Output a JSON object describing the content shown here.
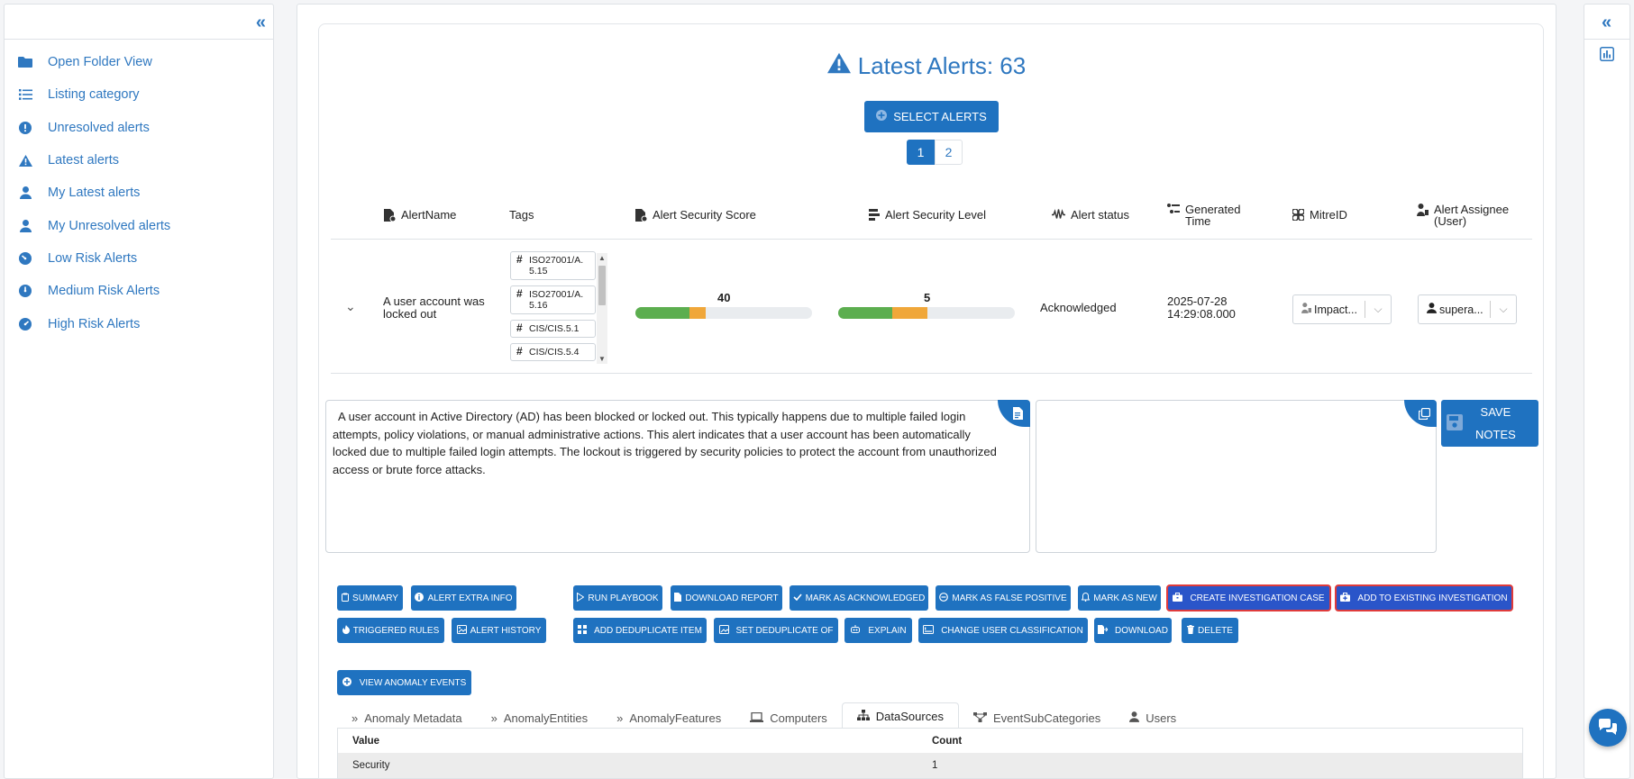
{
  "sidebar": {
    "items": [
      {
        "label": "Open Folder View",
        "icon": "folder-icon"
      },
      {
        "label": "Listing category",
        "icon": "list-icon"
      },
      {
        "label": "Unresolved alerts",
        "icon": "exclamation-circle-icon"
      },
      {
        "label": "Latest alerts",
        "icon": "warning-triangle-icon"
      },
      {
        "label": "My Latest alerts",
        "icon": "user-icon"
      },
      {
        "label": "My Unresolved alerts",
        "icon": "user-icon"
      },
      {
        "label": "Low Risk Alerts",
        "icon": "gauge-low-icon"
      },
      {
        "label": "Medium Risk Alerts",
        "icon": "gauge-medium-icon"
      },
      {
        "label": "High Risk Alerts",
        "icon": "gauge-high-icon"
      }
    ]
  },
  "main": {
    "title": "Latest Alerts: 63",
    "select_alerts_label": "SELECT ALERTS",
    "pages": [
      "1",
      "2"
    ],
    "columns": {
      "alert_name": "AlertName",
      "tags": "Tags",
      "security_score": "Alert Security Score",
      "security_level": "Alert Security Level",
      "status": "Alert status",
      "generated_time": "Generated Time",
      "mitre_id": "MitreID",
      "assignee": "Alert Assignee (User)"
    },
    "row": {
      "alert_name": "A user account was locked out",
      "tags": [
        "ISO27001/A. 5.15",
        "ISO27001/A. 5.16",
        "CIS/CIS.5.1",
        "CIS/CIS.5.4"
      ],
      "security_score": "40",
      "security_score_value": 40,
      "security_level": "5",
      "security_level_value": 5,
      "status": "Acknowledged",
      "generated_time": "2025-07-28 14:29:08.000",
      "mitre_value": "Impact...",
      "assignee_value": "supera..."
    },
    "description": "A user account in Active Directory (AD) has been blocked or locked out. This typically happens due to multiple failed login attempts, policy violations, or manual administrative actions. This alert indicates that a user account has been automatically locked due to multiple failed login attempts. The lockout is triggered by security policies to protect the account from unauthorized access or brute force attacks.",
    "notes_value": "",
    "save_notes_label_1": "SAVE",
    "save_notes_label_2": "NOTES",
    "actions": {
      "summary": "SUMMARY",
      "alert_extra_info": "ALERT EXTRA INFO",
      "run_playbook": "RUN PLAYBOOK",
      "download_report": "DOWNLOAD REPORT",
      "mark_acknowledged": "MARK AS ACKNOWLEDGED",
      "mark_false_positive": "MARK AS FALSE POSITIVE",
      "mark_new": "MARK AS NEW",
      "create_case": "CREATE INVESTIGATION CASE",
      "add_existing": "ADD TO EXISTING INVESTIGATION",
      "triggered_rules": "TRIGGERED RULES",
      "alert_history": "ALERT HISTORY",
      "add_dedup": "ADD DEDUPLICATE ITEM",
      "set_dedup": "SET DEDUPLICATE OF",
      "explain": "EXPLAIN",
      "change_user_class": "CHANGE USER CLASSIFICATION",
      "download": "DOWNLOAD",
      "delete": "DELETE",
      "view_anomaly": "VIEW ANOMALY EVENTS"
    },
    "tabs": [
      "Anomaly Metadata",
      "AnomalyEntities",
      "AnomalyFeatures",
      "Computers",
      "DataSources",
      "EventSubCategories",
      "Users"
    ],
    "active_tab": "DataSources",
    "table": {
      "headers": [
        "Value",
        "Count"
      ],
      "rows": [
        [
          "Security",
          "1"
        ]
      ]
    }
  },
  "colors": {
    "primary": "#1f72c0",
    "link": "#2f78c0",
    "score_green": "#5cae4f",
    "score_orange": "#f0a73a",
    "highlight_outline": "#e03b3b"
  }
}
